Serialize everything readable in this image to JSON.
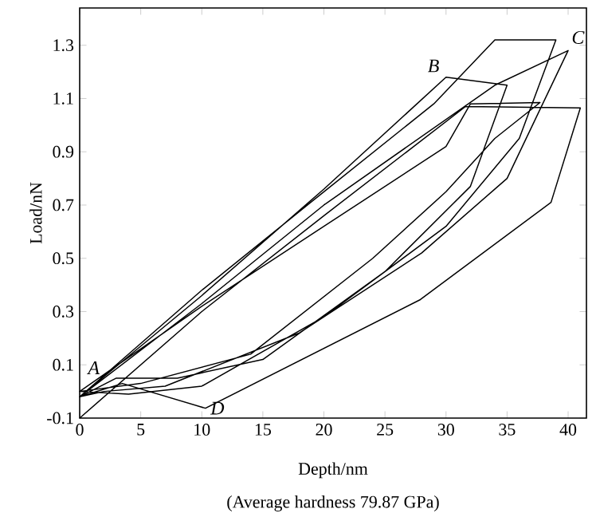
{
  "chart_data": {
    "type": "line",
    "xlabel": "Depth/nm",
    "ylabel": "Load/nN",
    "xlim": [
      0,
      41.5
    ],
    "ylim": [
      -0.1,
      1.44
    ],
    "xticks": [
      0,
      5,
      10,
      15,
      20,
      25,
      30,
      35,
      40
    ],
    "yticks": [
      -0.1,
      0.1,
      0.3,
      0.5,
      0.7,
      0.9,
      1.1,
      1.3
    ],
    "grid": false,
    "legend": false,
    "marker": "none",
    "line_style": "solid",
    "series": [
      {
        "color": "#000000",
        "x": [
          0,
          10,
          20,
          31.6,
          41,
          38.6,
          27.9,
          10.3,
          3.5,
          0,
          10,
          20,
          30,
          35,
          32,
          25,
          15,
          8,
          3,
          0,
          10,
          20,
          34,
          40,
          35,
          28,
          18,
          7,
          2,
          0,
          10,
          20,
          29,
          34,
          39,
          36,
          30,
          20,
          10,
          4,
          0,
          10,
          20,
          30,
          32,
          37.7,
          34,
          30,
          24,
          14,
          5,
          0
        ],
        "values": [
          -0.1,
          0.3,
          0.66,
          1.07,
          1.065,
          0.71,
          0.345,
          -0.063,
          0.03,
          -0.02,
          0.36,
          0.76,
          1.18,
          1.15,
          0.77,
          0.45,
          0.12,
          0.05,
          0.05,
          -0.02,
          0.33,
          0.7,
          1.15,
          1.28,
          0.8,
          0.52,
          0.22,
          0.02,
          0,
          -0.02,
          0.38,
          0.75,
          1.08,
          1.32,
          1.32,
          0.95,
          0.62,
          0.28,
          0.02,
          -0.01,
          0,
          0.32,
          0.62,
          0.92,
          1.08,
          1.085,
          0.95,
          0.75,
          0.5,
          0.14,
          0.03,
          0
        ]
      }
    ],
    "annotations": [
      {
        "text": "A",
        "x": 0,
        "y": -0.02
      },
      {
        "text": "B",
        "x": 30,
        "y": 1.18
      },
      {
        "text": "C",
        "x": 40,
        "y": 1.28
      },
      {
        "text": "D",
        "x": 10.3,
        "y": -0.063
      },
      "(Average hardness 79.87 GPa)"
    ]
  }
}
